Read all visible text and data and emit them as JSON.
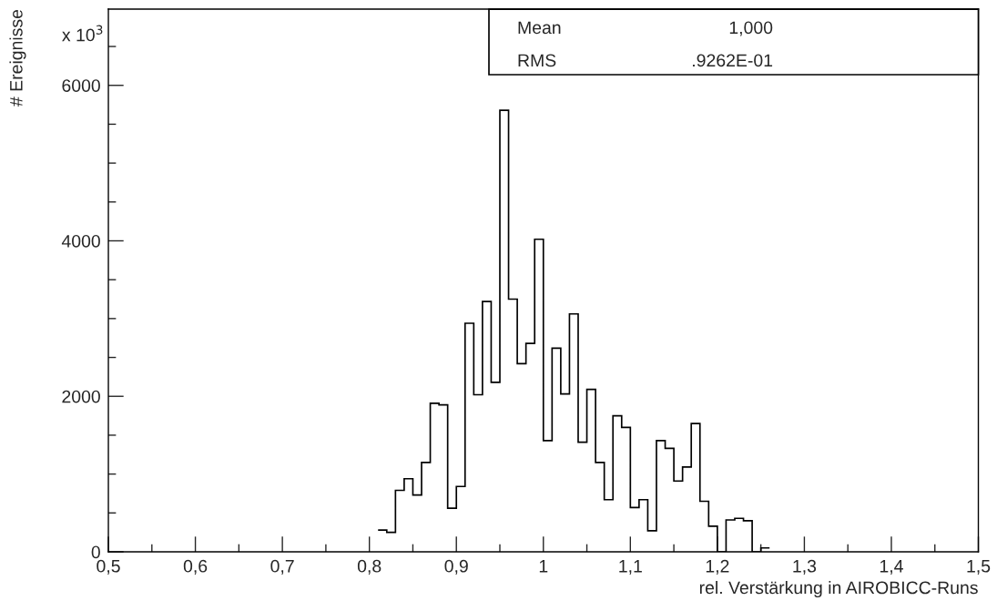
{
  "chart_data": {
    "type": "histogram",
    "xlabel": "rel. Verstärkung in AIROBICC-Runs",
    "ylabel": "# Ereignisse",
    "bins": [
      0.81,
      0.82,
      0.83,
      0.84,
      0.85,
      0.86,
      0.87,
      0.88,
      0.89,
      0.9,
      0.91,
      0.92,
      0.93,
      0.94,
      0.95,
      0.96,
      0.97,
      0.98,
      0.99,
      1.0,
      1.01,
      1.02,
      1.03,
      1.04,
      1.05,
      1.06,
      1.07,
      1.08,
      1.09,
      1.1,
      1.11,
      1.12,
      1.13,
      1.14,
      1.15,
      1.16,
      1.17,
      1.18,
      1.19,
      1.2,
      1.21,
      1.22,
      1.23,
      1.24,
      1.25,
      1.26
    ],
    "values": [
      280,
      250,
      790,
      940,
      730,
      1150,
      1910,
      1890,
      560,
      840,
      2940,
      2020,
      3220,
      2180,
      5680,
      3250,
      2420,
      2680,
      4020,
      1430,
      2620,
      2030,
      3060,
      1410,
      2090,
      1150,
      670,
      1750,
      1600,
      570,
      670,
      270,
      1430,
      1330,
      910,
      1090,
      1650,
      650,
      330,
      0,
      410,
      430,
      400,
      0,
      50
    ],
    "color": "#000000",
    "xlim": [
      0.5,
      1.5
    ],
    "ylim": [
      0,
      6980
    ],
    "xticks": [
      {
        "value": 0.5,
        "label": "0,5"
      },
      {
        "value": 0.55,
        "label": null
      },
      {
        "value": 0.6,
        "label": "0,6"
      },
      {
        "value": 0.65,
        "label": null
      },
      {
        "value": 0.7,
        "label": "0,7"
      },
      {
        "value": 0.75,
        "label": null
      },
      {
        "value": 0.8,
        "label": "0,8"
      },
      {
        "value": 0.85,
        "label": null
      },
      {
        "value": 0.9,
        "label": "0,9"
      },
      {
        "value": 0.95,
        "label": null
      },
      {
        "value": 1.0,
        "label": "1"
      },
      {
        "value": 1.05,
        "label": null
      },
      {
        "value": 1.1,
        "label": "1,1"
      },
      {
        "value": 1.15,
        "label": null
      },
      {
        "value": 1.2,
        "label": "1,2"
      },
      {
        "value": 1.25,
        "label": null
      },
      {
        "value": 1.3,
        "label": "1,3"
      },
      {
        "value": 1.35,
        "label": null
      },
      {
        "value": 1.4,
        "label": "1,4"
      },
      {
        "value": 1.45,
        "label": null
      },
      {
        "value": 1.5,
        "label": "1,5"
      }
    ],
    "yticks": [
      0,
      {
        "value": 500,
        "label": null
      },
      {
        "value": 1000,
        "label": null
      },
      {
        "value": 1500,
        "label": null
      },
      2000,
      {
        "value": 2500,
        "label": null
      },
      {
        "value": 3000,
        "label": null
      },
      {
        "value": 3500,
        "label": null
      },
      4000,
      {
        "value": 4500,
        "label": null
      },
      {
        "value": 5000,
        "label": null
      },
      {
        "value": 5500,
        "label": null
      },
      6000,
      {
        "value": 6500,
        "label": null
      }
    ],
    "grid": false,
    "legend": false,
    "annotations": [
      "x 10$^{3}$",
      "Mean",
      "1,000",
      "RMS",
      ".9262E-01"
    ]
  }
}
